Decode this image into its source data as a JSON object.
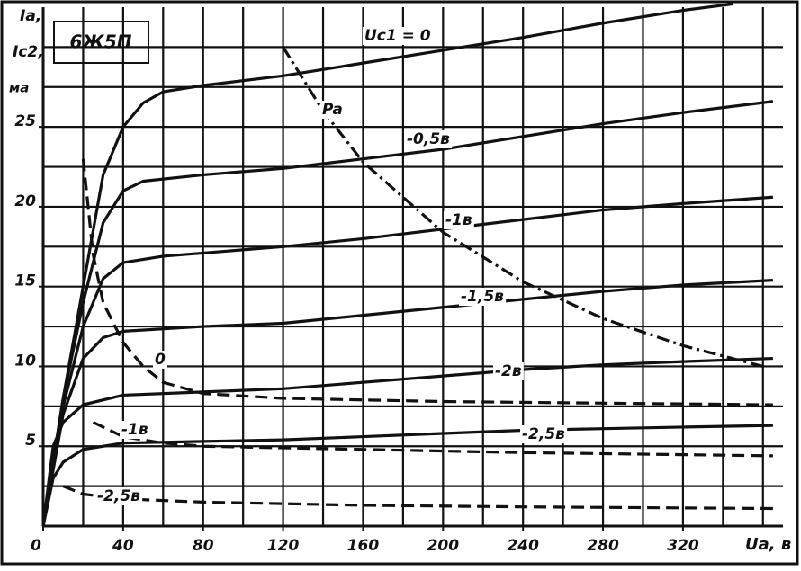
{
  "chart_data": {
    "type": "line",
    "title": "6Ж5П",
    "xlabel": "Ua, в",
    "ylabel": [
      "Ia,",
      "Ic2,",
      "ма"
    ],
    "xlim": [
      0,
      370
    ],
    "ylim": [
      0,
      32.5
    ],
    "xticks": [
      0,
      40,
      80,
      120,
      160,
      200,
      240,
      280,
      320
    ],
    "yticks": [
      5,
      10,
      15,
      20,
      25
    ],
    "x_grid": [
      20,
      40,
      60,
      80,
      100,
      120,
      140,
      160,
      180,
      200,
      220,
      240,
      260,
      280,
      300,
      320,
      340,
      360
    ],
    "y_grid": [
      2.5,
      5,
      7.5,
      10,
      12.5,
      15,
      17.5,
      20,
      22.5,
      25,
      27.5,
      30
    ],
    "grid": true,
    "series": [
      {
        "name": "Uc1 = 0",
        "color": "#111111",
        "style": "solid",
        "x": [
          0,
          10,
          20,
          30,
          40,
          50,
          60,
          80,
          120,
          160,
          200,
          240,
          280,
          320,
          345
        ],
        "values": [
          0,
          8,
          15,
          22,
          25,
          26.5,
          27.2,
          27.6,
          28.2,
          29,
          29.8,
          30.6,
          31.5,
          32.3,
          32.7
        ]
      },
      {
        "name": "-0,5в",
        "color": "#111111",
        "style": "solid",
        "x": [
          0,
          10,
          20,
          30,
          40,
          50,
          80,
          120,
          160,
          200,
          240,
          280,
          320,
          365
        ],
        "values": [
          0,
          8,
          14,
          19,
          21,
          21.6,
          22,
          22.4,
          23,
          23.6,
          24.4,
          25.2,
          25.9,
          26.6
        ]
      },
      {
        "name": "-1в",
        "color": "#111111",
        "style": "solid",
        "x": [
          0,
          10,
          20,
          30,
          40,
          60,
          80,
          120,
          160,
          200,
          240,
          280,
          320,
          365
        ],
        "values": [
          0,
          7.5,
          12.5,
          15.5,
          16.5,
          16.9,
          17.1,
          17.5,
          18,
          18.6,
          19.2,
          19.8,
          20.2,
          20.6
        ]
      },
      {
        "name": "-1,5в",
        "color": "#111111",
        "style": "solid",
        "x": [
          0,
          10,
          20,
          30,
          40,
          80,
          120,
          160,
          200,
          240,
          280,
          320,
          365
        ],
        "values": [
          0,
          7,
          10.5,
          11.8,
          12.2,
          12.5,
          12.7,
          13.2,
          13.7,
          14.2,
          14.7,
          15.1,
          15.4
        ]
      },
      {
        "name": "-2в",
        "color": "#111111",
        "style": "solid",
        "x": [
          0,
          5,
          10,
          20,
          40,
          80,
          120,
          160,
          200,
          240,
          280,
          320,
          365
        ],
        "values": [
          0,
          5,
          6.5,
          7.6,
          8.2,
          8.4,
          8.6,
          9,
          9.4,
          9.8,
          10.1,
          10.3,
          10.5
        ]
      },
      {
        "name": "-2,5в",
        "color": "#111111",
        "style": "solid",
        "x": [
          0,
          5,
          10,
          20,
          40,
          80,
          120,
          160,
          200,
          240,
          280,
          320,
          365
        ],
        "values": [
          0,
          3,
          4,
          4.8,
          5.2,
          5.3,
          5.4,
          5.6,
          5.8,
          6,
          6.1,
          6.2,
          6.3
        ]
      },
      {
        "name": "0",
        "color": "#111111",
        "style": "dashed",
        "x": [
          20,
          25,
          30,
          40,
          50,
          60,
          80,
          120,
          160,
          200,
          280,
          365
        ],
        "values": [
          23,
          17,
          14,
          11.5,
          10,
          9,
          8.3,
          8,
          7.9,
          7.8,
          7.7,
          7.6
        ]
      },
      {
        "name": "-1в",
        "color": "#111111",
        "style": "dashed",
        "x": [
          25,
          40,
          60,
          80,
          160,
          240,
          365
        ],
        "values": [
          6.5,
          5.6,
          5.2,
          5,
          4.8,
          4.6,
          4.4
        ]
      },
      {
        "name": "-2,5в",
        "color": "#111111",
        "style": "dashed",
        "x": [
          10,
          20,
          40,
          80,
          160,
          240,
          365
        ],
        "values": [
          2.5,
          2,
          1.7,
          1.5,
          1.3,
          1.2,
          1.1
        ]
      },
      {
        "name": "Pa",
        "color": "#111111",
        "style": "dashdot",
        "x": [
          120,
          140,
          160,
          200,
          240,
          280,
          320,
          360
        ],
        "values": [
          30,
          26,
          22.8,
          18.4,
          15.3,
          13,
          11.3,
          10
        ]
      }
    ]
  }
}
